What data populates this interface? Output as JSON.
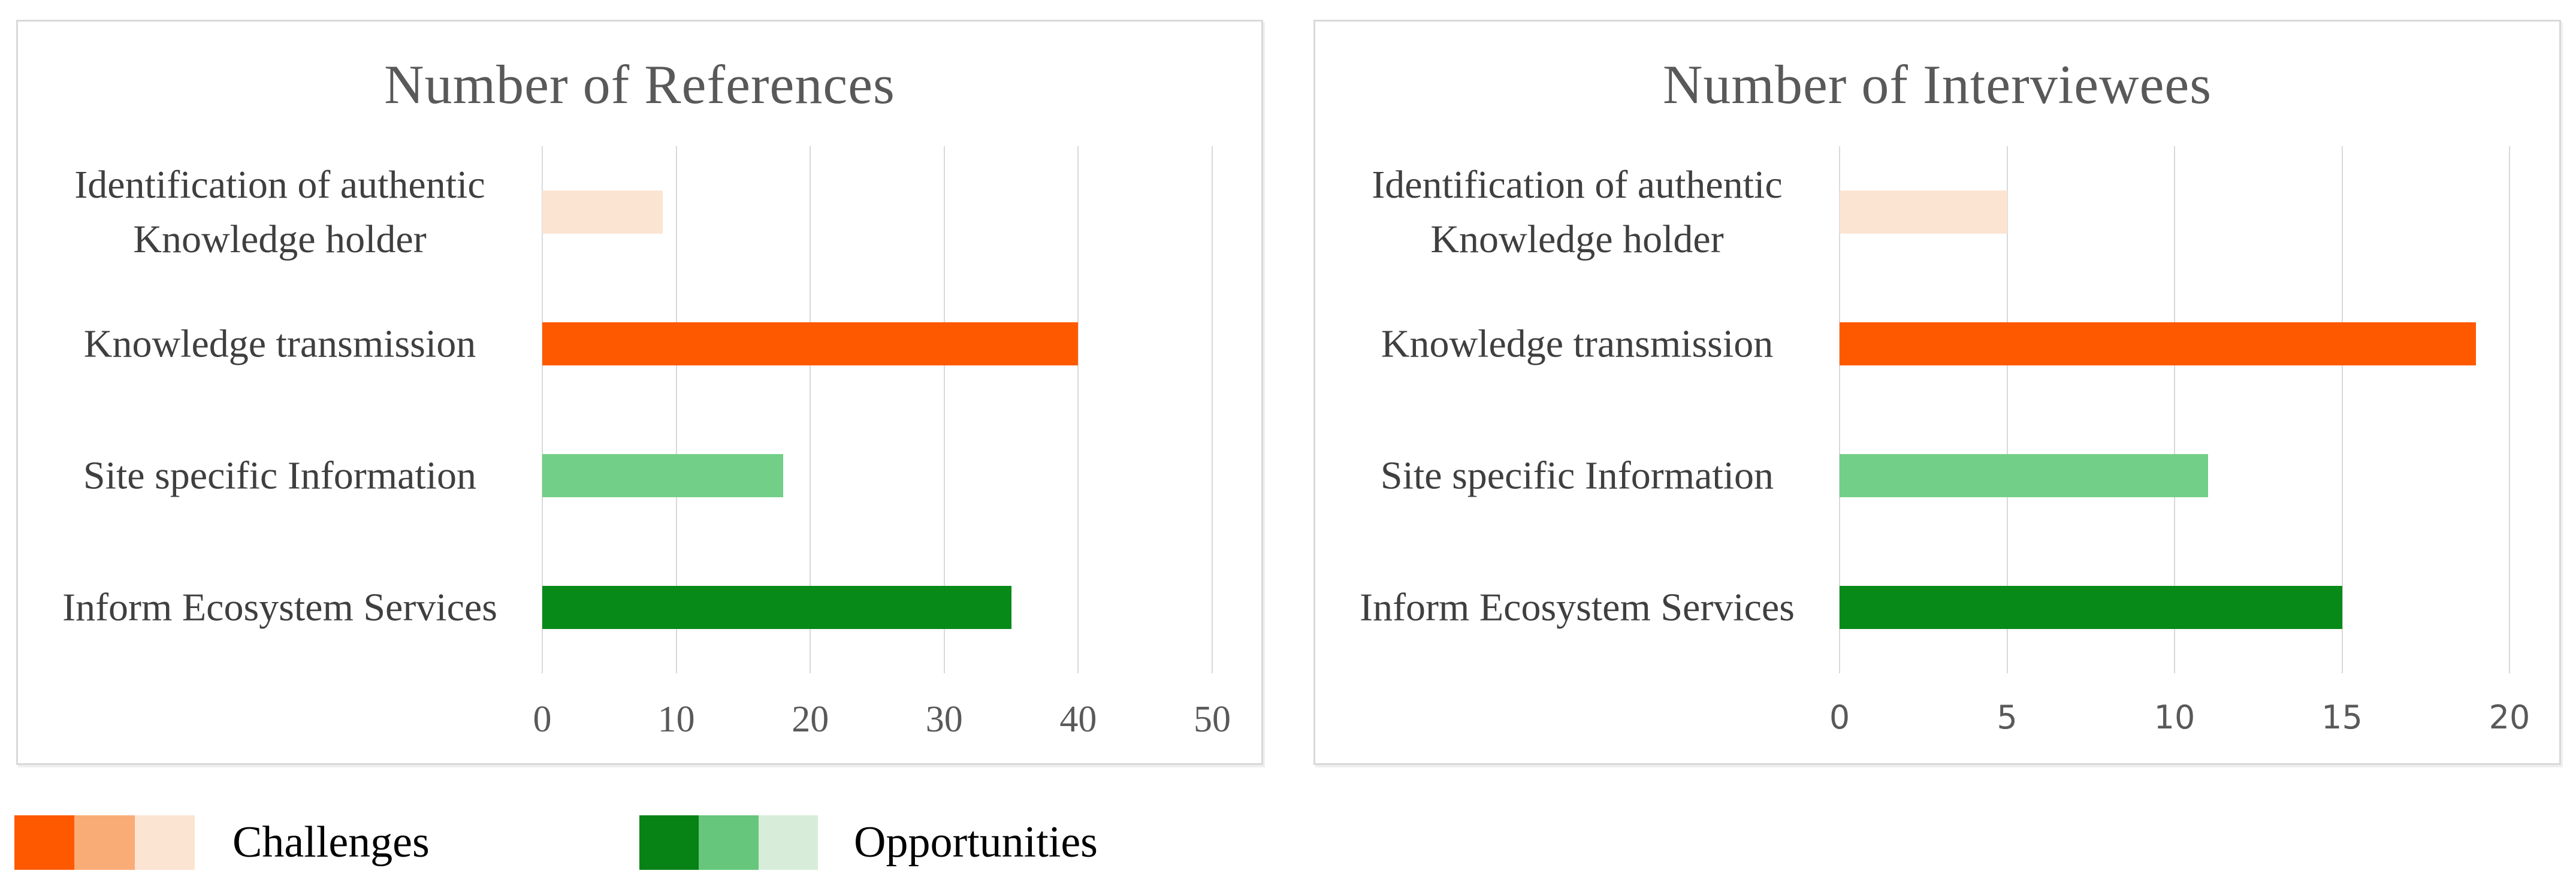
{
  "chart_data": [
    {
      "type": "bar",
      "orientation": "horizontal",
      "title": "Number of References",
      "categories": [
        "Identification of authentic Knowledge holder",
        "Knowledge transmission",
        "Site specific Information",
        "Inform Ecosystem Services"
      ],
      "values": [
        9,
        40,
        18,
        35
      ],
      "bar_colors": [
        "#FCE4D2",
        "#FF5900",
        "#72CF87",
        "#088A18"
      ],
      "x_ticks": [
        0,
        10,
        20,
        30,
        40,
        50
      ],
      "xlim": [
        0,
        50
      ],
      "grid": true,
      "tick_font": "serif"
    },
    {
      "type": "bar",
      "orientation": "horizontal",
      "title": "Number of Interviewees",
      "categories": [
        "Identification of authentic Knowledge holder",
        "Knowledge transmission",
        "Site specific Information",
        "Inform Ecosystem Services"
      ],
      "values": [
        5,
        19,
        11,
        15
      ],
      "bar_colors": [
        "#FCE4D2",
        "#FF5900",
        "#72CF87",
        "#088A18"
      ],
      "x_ticks": [
        0,
        5,
        10,
        15,
        20
      ],
      "xlim": [
        0,
        20
      ],
      "grid": true,
      "tick_font": "sans"
    }
  ],
  "legend": {
    "position": "bottom-left",
    "items": [
      {
        "label": "Challenges",
        "swatches": [
          "#FF5900",
          "#FAAC76",
          "#FCE4D2"
        ]
      },
      {
        "label": "Opportunities",
        "swatches": [
          "#078215",
          "#66C67B",
          "#D7EDDA"
        ]
      }
    ]
  },
  "colors": {
    "panel_border": "#D9D9D9",
    "gridline": "#D9D9D9",
    "title_text": "#595959",
    "tick_text": "#595959",
    "category_text": "#3F3F3F",
    "legend_text": "#000000",
    "background": "#FFFFFF"
  }
}
